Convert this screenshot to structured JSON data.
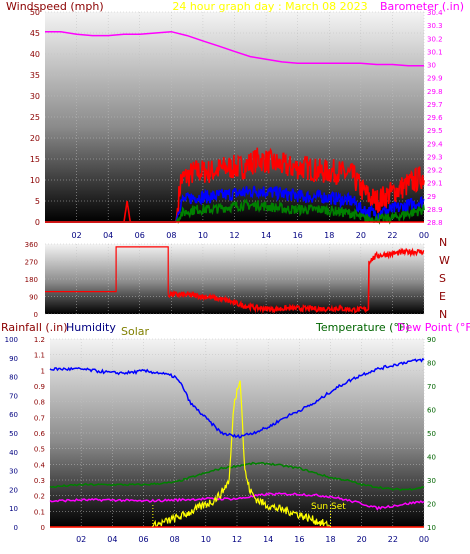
{
  "colors": {
    "panel_top": "#f2f2f2",
    "panel_bottom": "#000000",
    "grid": "#c0c0c0",
    "windspeed": "#ff0000",
    "gust": "#ff0000",
    "avg_wind": "#0000ff",
    "low_wind": "#008000",
    "barometer": "#ff00ff",
    "direction": "#ff0000",
    "humidity": "#0000ff",
    "temperature": "#008000",
    "dewpoint": "#ff00ff",
    "solar": "#ffff00",
    "rainfall": "#ff0000",
    "label_dark_red": "#8b0000",
    "label_olive": "#808000",
    "label_green": "#006400",
    "label_navy": "#000080",
    "label_yellow": "#ffff00"
  },
  "header": {
    "left": "Windspeed (mph)",
    "center": "24 hour graph day : March 08 2023",
    "right": "Barometer (.in)"
  },
  "wind_panel": {
    "left_ticks": [
      "0",
      "5",
      "10",
      "15",
      "20",
      "25",
      "30",
      "35",
      "40",
      "45",
      "50"
    ],
    "right_ticks": [
      "28.8",
      "28.9",
      "29",
      "29.1",
      "29.2",
      "29.3",
      "29.4",
      "29.5",
      "29.6",
      "29.7",
      "29.8",
      "29.9",
      "30",
      "30.1",
      "30.2",
      "30.3",
      "30.4"
    ]
  },
  "direction_panel": {
    "left_ticks": [
      "0",
      "90",
      "180",
      "270",
      "360"
    ],
    "right_labels": [
      "N",
      "W",
      "S",
      "E",
      "N"
    ]
  },
  "bottom_header": {
    "rainfall": "Rainfall (.in)",
    "humidity": "Humidity",
    "solar": "Solar",
    "temperature": "Temperature (°F)",
    "dewpoint": "Dew Point (°F)"
  },
  "bottom_panel": {
    "humidity_ticks": [
      "0",
      "10",
      "20",
      "30",
      "40",
      "50",
      "60",
      "70",
      "80",
      "90",
      "100"
    ],
    "rain_ticks": [
      "0",
      "0.1",
      "0.2",
      "0.3",
      "0.4",
      "0.5",
      "0.6",
      "0.7",
      "0.8",
      "0.9",
      "1",
      "1.1",
      "1.2"
    ],
    "temp_ticks": [
      "10",
      "20",
      "30",
      "40",
      "50",
      "60",
      "70",
      "80",
      "90"
    ],
    "sunset_label": "Sun Set"
  },
  "x_ticks": [
    "02",
    "04",
    "06",
    "08",
    "10",
    "12",
    "14",
    "16",
    "18",
    "20",
    "22",
    "00"
  ],
  "chart_data": [
    {
      "type": "line",
      "xlabel": "",
      "ylabel": "Windspeed (mph)",
      "ylim": [
        0,
        50
      ],
      "y2label": "Barometer (.in)",
      "y2lim": [
        28.8,
        30.4
      ],
      "grid": true,
      "series": [
        {
          "axis": "left",
          "x": [
            0,
            5,
            5.2,
            5.4,
            8.3,
            8.6,
            9.5,
            10.5,
            11.5,
            12.5,
            13.5,
            14.5,
            15.5,
            16.5,
            17.5,
            18.5,
            19.5,
            20,
            20.5,
            21,
            21.5,
            22,
            22.5,
            23,
            23.5,
            24
          ],
          "values": [
            0,
            0,
            5,
            0,
            0,
            10,
            12,
            12,
            13,
            13,
            15,
            14,
            13,
            13,
            12,
            12,
            11,
            8,
            6,
            5,
            6,
            7,
            8,
            9,
            10,
            11
          ]
        },
        {
          "axis": "left",
          "x": [
            0,
            8.3,
            8.6,
            9.5,
            10.5,
            11.5,
            12.5,
            13.5,
            14.5,
            15.5,
            16.5,
            17.5,
            18.5,
            19.5,
            20,
            21,
            22,
            23,
            24
          ],
          "values": [
            0,
            0,
            5,
            6,
            6,
            6.5,
            7,
            7.5,
            7,
            6.5,
            6,
            6,
            5.5,
            5,
            3,
            2,
            3,
            4,
            5
          ]
        },
        {
          "axis": "left",
          "x": [
            0,
            8.3,
            8.6,
            9.5,
            10.5,
            11.5,
            12.5,
            13.5,
            14.5,
            15.5,
            16.5,
            17.5,
            18.5,
            19.5,
            20,
            21,
            22,
            23,
            24
          ],
          "values": [
            0,
            0,
            2,
            3,
            3,
            3.5,
            4,
            4,
            3.5,
            3,
            3,
            3,
            2.5,
            2,
            1,
            0.5,
            1,
            2,
            3
          ]
        },
        {
          "axis": "right",
          "x": [
            0,
            1,
            2,
            3,
            4,
            5,
            6,
            7,
            8,
            9,
            10,
            11,
            12,
            13,
            14,
            15,
            16,
            17,
            18,
            19,
            20,
            21,
            22,
            23,
            24
          ],
          "values": [
            30.25,
            30.25,
            30.23,
            30.22,
            30.22,
            30.23,
            30.23,
            30.24,
            30.25,
            30.22,
            30.18,
            30.14,
            30.1,
            30.06,
            30.04,
            30.02,
            30.01,
            30.01,
            30.01,
            30.01,
            30.01,
            30.0,
            30.0,
            29.99,
            29.99
          ]
        }
      ]
    },
    {
      "type": "line",
      "xlabel": "",
      "ylabel": "",
      "ylim": [
        0,
        360
      ],
      "grid": true,
      "series": [
        {
          "x": [
            0,
            4.5,
            4.5,
            7.8,
            7.8,
            8.5,
            9.5,
            10.5,
            11.5,
            12.5,
            13.5,
            14.5,
            15.5,
            16.5,
            17.5,
            18.5,
            19.5,
            20.5,
            20.5,
            21,
            22,
            23,
            24
          ],
          "values": [
            115,
            115,
            345,
            345,
            100,
            100,
            95,
            85,
            70,
            45,
            30,
            25,
            30,
            28,
            26,
            30,
            22,
            25,
            270,
            300,
            310,
            320,
            320
          ]
        }
      ]
    },
    {
      "type": "line",
      "xlabel": "",
      "ylabel": "Humidity",
      "ylim": [
        0,
        100
      ],
      "y2label": "Rainfall (.in)",
      "y2lim": [
        0,
        1.2
      ],
      "y3label": "Temperature (°F)",
      "y3lim": [
        10,
        90
      ],
      "grid": true,
      "series": [
        {
          "name": "Humidity",
          "axis": "humidity",
          "x": [
            0,
            2,
            4,
            5,
            6,
            7,
            8,
            8.5,
            9,
            9.5,
            10,
            10.5,
            11,
            12,
            13,
            14,
            15,
            16,
            17,
            18,
            19,
            20,
            21,
            22,
            22.5,
            23,
            24
          ],
          "values": [
            84,
            84,
            82,
            82,
            83,
            82,
            80,
            75,
            66,
            62,
            58,
            54,
            50,
            48,
            50,
            53,
            58,
            62,
            66,
            72,
            77,
            81,
            84,
            86,
            87,
            88,
            89
          ]
        },
        {
          "name": "Temperature (°F)",
          "axis": "temp",
          "x": [
            0,
            2,
            4,
            6,
            8,
            9,
            10,
            11,
            12,
            13,
            14,
            15,
            16,
            17,
            18,
            19,
            20,
            21,
            22,
            23,
            24
          ],
          "values": [
            27,
            28,
            28,
            28,
            29,
            31,
            33,
            35,
            36,
            37,
            37,
            36,
            35,
            33,
            31,
            30,
            28,
            27,
            26,
            26,
            27
          ]
        },
        {
          "name": "Dew Point (°F)",
          "axis": "temp",
          "x": [
            0,
            2,
            4,
            6,
            8,
            10,
            12,
            13,
            14,
            16,
            18,
            20,
            21,
            22,
            23,
            24
          ],
          "values": [
            21,
            21.5,
            21.5,
            21,
            21.5,
            22,
            22,
            23,
            24,
            24,
            23,
            20,
            18,
            19,
            20,
            21
          ]
        },
        {
          "name": "Solar",
          "axis": "humidity",
          "x": [
            0,
            6.5,
            6.8,
            7.5,
            8.5,
            9.5,
            10.5,
            11,
            11.5,
            11.8,
            12.2,
            12.5,
            12.8,
            13.2,
            13.8,
            14.5,
            15.5,
            16.5,
            17.5,
            18,
            24
          ],
          "values": [
            0,
            0,
            1,
            3,
            6,
            10,
            14,
            18,
            25,
            65,
            80,
            30,
            20,
            15,
            12,
            10,
            8,
            5,
            2,
            0,
            0
          ]
        },
        {
          "name": "Rainfall (.in)",
          "axis": "rain",
          "x": [
            0,
            24
          ],
          "values": [
            0,
            0
          ]
        }
      ]
    }
  ]
}
